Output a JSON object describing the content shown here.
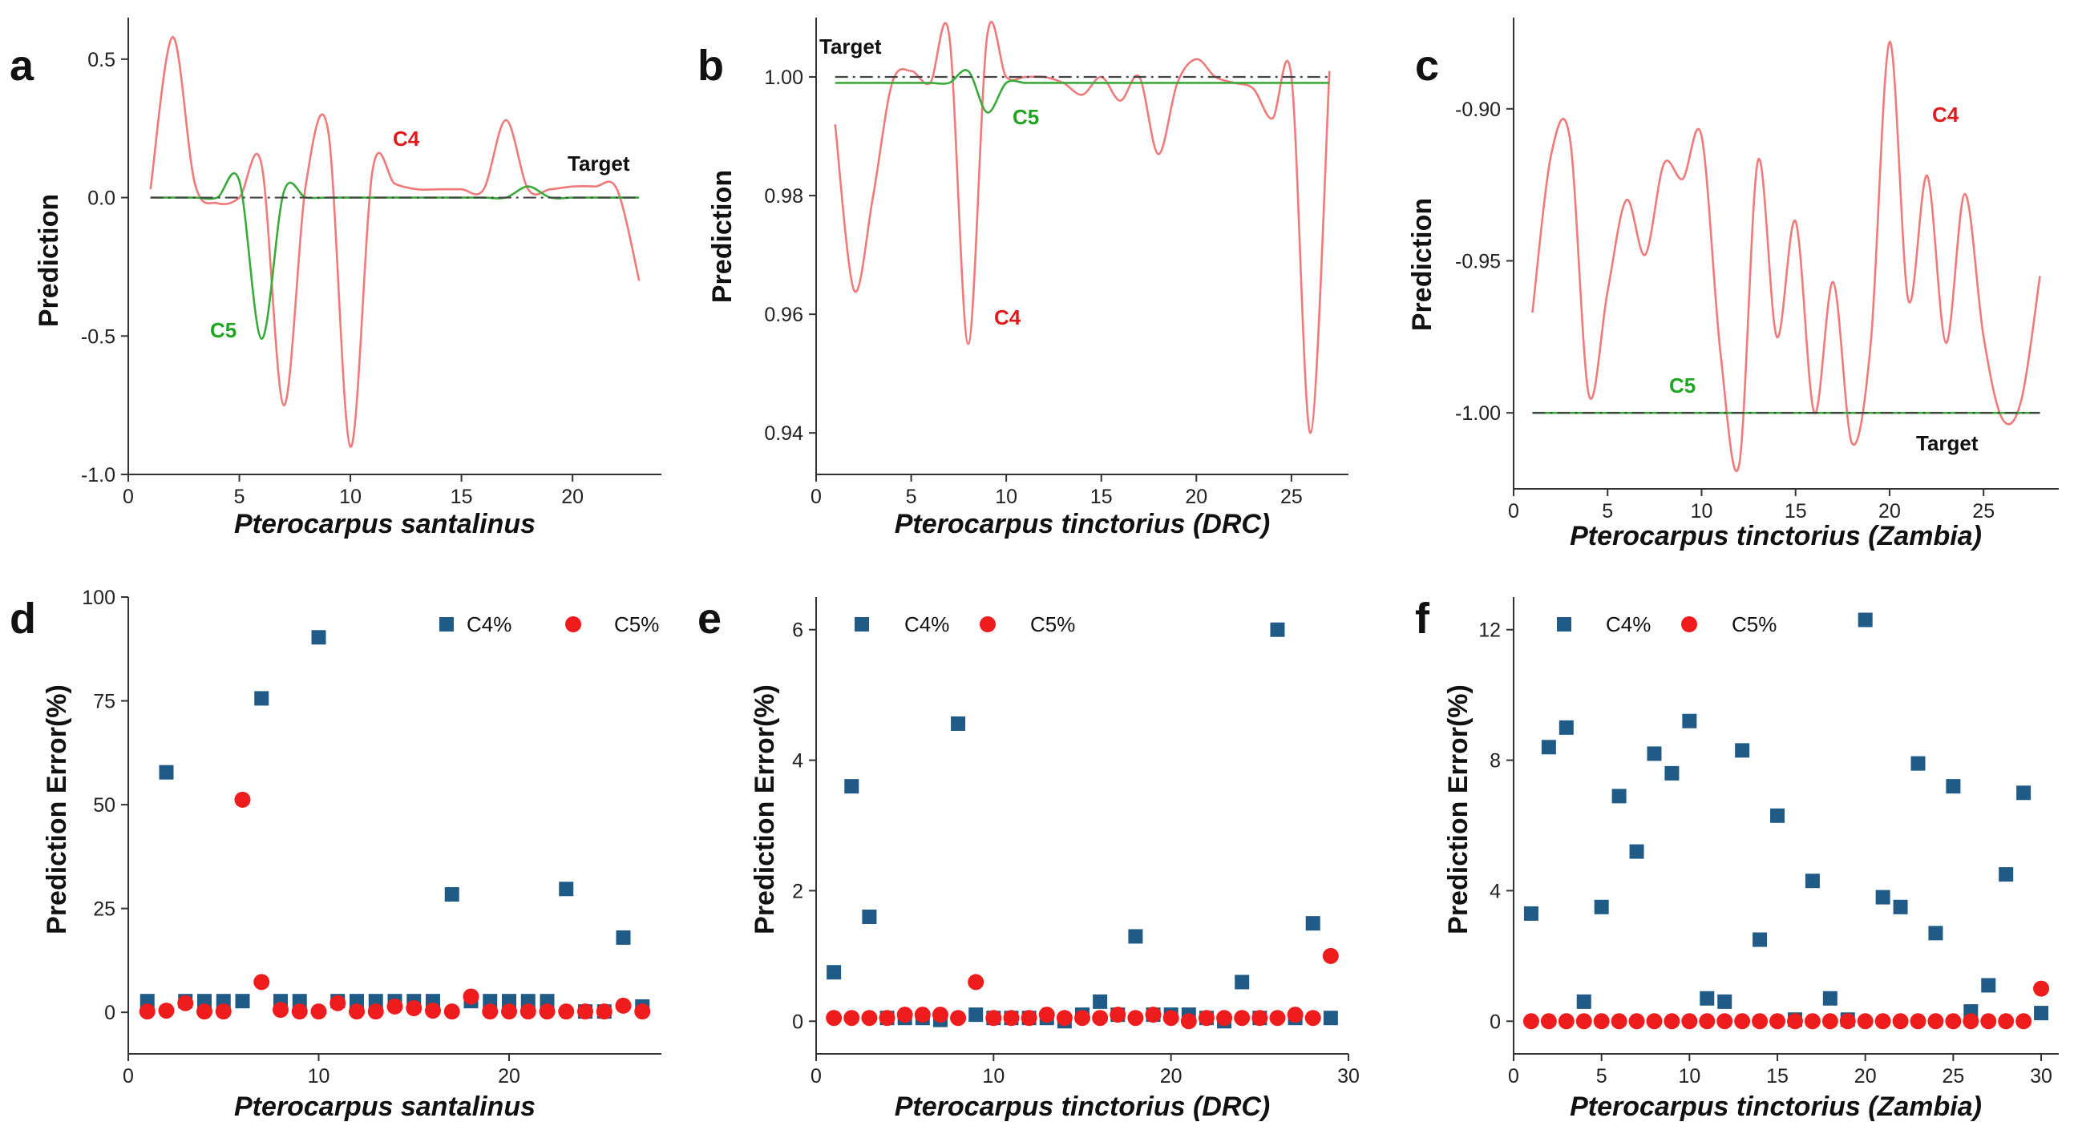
{
  "colors": {
    "c4": "#f07a7a",
    "c5": "#3aaa3a",
    "target": "#444444",
    "c4_marker": "#1f5b86",
    "c5_marker": "#ee1c1c",
    "c4_label": "#e01b1b",
    "c5_label": "#1fa51f"
  },
  "chart_data": [
    {
      "panel": "a",
      "type": "line",
      "xlabel": "Pterocarpus santalinus",
      "ylabel": "Prediction",
      "xlim": [
        0,
        24
      ],
      "ylim": [
        -1.0,
        0.65
      ],
      "xticks": [
        0,
        5,
        10,
        15,
        20
      ],
      "yticks": [
        -1.0,
        -0.5,
        0.0,
        0.5
      ],
      "ytick_labels": [
        "-1.0",
        "-0.5",
        "0.0",
        "0.5"
      ],
      "series": [
        {
          "name": "C4",
          "x": [
            1,
            2,
            3,
            4,
            5,
            6,
            7,
            8,
            9,
            10,
            11,
            12,
            13,
            14,
            15,
            16,
            17,
            18,
            19,
            20,
            21,
            22,
            23
          ],
          "y": [
            0.03,
            0.58,
            0.05,
            -0.02,
            0.0,
            0.12,
            -0.75,
            0.05,
            0.24,
            -0.9,
            0.1,
            0.05,
            0.03,
            0.03,
            0.03,
            0.03,
            0.28,
            0.03,
            0.03,
            0.04,
            0.04,
            0.03,
            -0.3
          ]
        },
        {
          "name": "C5",
          "x": [
            1,
            2,
            3,
            4,
            5,
            6,
            7,
            8,
            9,
            10,
            11,
            12,
            13,
            14,
            15,
            16,
            17,
            18,
            19,
            20,
            21,
            22,
            23
          ],
          "y": [
            0,
            0,
            0,
            0,
            0.06,
            -0.51,
            0.02,
            0,
            0,
            0,
            0,
            0,
            0,
            0,
            0,
            0,
            0,
            0.04,
            0,
            0,
            0,
            0,
            0
          ]
        },
        {
          "name": "Target",
          "x": [
            1,
            23
          ],
          "y": [
            0,
            0
          ]
        }
      ],
      "annotations": [
        {
          "text": "C4",
          "series": "C4"
        },
        {
          "text": "C5",
          "series": "C5"
        },
        {
          "text": "Target",
          "series": "Target"
        }
      ]
    },
    {
      "panel": "b",
      "type": "line",
      "xlabel": "Pterocarpus tinctorius (DRC)",
      "ylabel": "Prediction",
      "xlim": [
        0,
        28
      ],
      "ylim": [
        0.933,
        1.01
      ],
      "xticks": [
        0,
        5,
        10,
        15,
        20,
        25
      ],
      "yticks": [
        0.94,
        0.96,
        0.98,
        1.0
      ],
      "ytick_labels": [
        "0.94",
        "0.96",
        "0.98",
        "1.00"
      ],
      "series": [
        {
          "name": "C4",
          "x": [
            1,
            2,
            3,
            4,
            5,
            6,
            7,
            8,
            9,
            10,
            11,
            12,
            13,
            14,
            15,
            16,
            17,
            18,
            19,
            20,
            21,
            22,
            23,
            24,
            25,
            26,
            27
          ],
          "y": [
            0.992,
            0.964,
            0.98,
            0.999,
            1.001,
            0.999,
            1.007,
            0.955,
            1.007,
            1.0,
            1.0,
            1.0,
            0.999,
            0.997,
            1.0,
            0.996,
            1.0,
            0.987,
            0.999,
            1.003,
            1.0,
            0.999,
            0.998,
            0.993,
            1.0,
            0.94,
            1.001
          ]
        },
        {
          "name": "C5",
          "x": [
            1,
            2,
            3,
            4,
            5,
            6,
            7,
            8,
            9,
            10,
            11,
            12,
            13,
            14,
            15,
            16,
            17,
            18,
            19,
            20,
            21,
            22,
            23,
            24,
            25,
            26,
            27
          ],
          "y": [
            0.999,
            0.999,
            0.999,
            0.999,
            0.999,
            0.999,
            0.999,
            1.001,
            0.994,
            0.999,
            0.999,
            0.999,
            0.999,
            0.999,
            0.999,
            0.999,
            0.999,
            0.999,
            0.999,
            0.999,
            0.999,
            0.999,
            0.999,
            0.999,
            0.999,
            0.999,
            0.999
          ]
        },
        {
          "name": "Target",
          "x": [
            1,
            27
          ],
          "y": [
            1.0,
            1.0
          ]
        }
      ],
      "annotations": [
        {
          "text": "Target",
          "series": "Target"
        },
        {
          "text": "C5",
          "series": "C5"
        },
        {
          "text": "C4",
          "series": "C4"
        }
      ]
    },
    {
      "panel": "c",
      "type": "line",
      "xlabel": "Pterocarpus tinctorius (Zambia)",
      "ylabel": "Prediction",
      "xlim": [
        0,
        29
      ],
      "ylim": [
        -1.025,
        -0.87
      ],
      "xticks": [
        0,
        5,
        10,
        15,
        20,
        25
      ],
      "yticks": [
        -1.0,
        -0.95,
        -0.9
      ],
      "ytick_labels": [
        "-1.00",
        "-0.95",
        "-0.90"
      ],
      "series": [
        {
          "name": "C4",
          "x": [
            1,
            2,
            3,
            4,
            5,
            6,
            7,
            8,
            9,
            10,
            11,
            12,
            13,
            14,
            15,
            16,
            17,
            18,
            19,
            20,
            21,
            22,
            23,
            24,
            25,
            26,
            27,
            28
          ],
          "y": [
            -0.967,
            -0.915,
            -0.91,
            -0.994,
            -0.96,
            -0.93,
            -0.948,
            -0.918,
            -0.923,
            -0.909,
            -0.98,
            -1.017,
            -0.917,
            -0.975,
            -0.937,
            -1.0,
            -0.957,
            -1.01,
            -0.977,
            -0.878,
            -0.963,
            -0.922,
            -0.977,
            -0.928,
            -0.975,
            -1.002,
            -0.996,
            -0.955
          ]
        },
        {
          "name": "C5",
          "x": [
            1,
            28
          ],
          "y": [
            -1.0,
            -1.0
          ]
        },
        {
          "name": "Target",
          "x": [
            1,
            28
          ],
          "y": [
            -1.0,
            -1.0
          ]
        }
      ],
      "annotations": [
        {
          "text": "C4",
          "series": "C4"
        },
        {
          "text": "C5",
          "series": "C5"
        },
        {
          "text": "Target",
          "series": "Target"
        }
      ]
    },
    {
      "panel": "d",
      "type": "scatter",
      "xlabel": "Pterocarpus santalinus",
      "ylabel": "Prediction Error(%)",
      "xlim": [
        0,
        28
      ],
      "ylim": [
        -10,
        100
      ],
      "xticks": [
        0,
        10,
        20
      ],
      "yticks": [
        0,
        25,
        50,
        75,
        100
      ],
      "ytick_labels": [
        "0",
        "25",
        "50",
        "75",
        "100"
      ],
      "legend": [
        "C4%",
        "C5%"
      ],
      "legend_position": "top-right",
      "series": [
        {
          "name": "C4%",
          "x": [
            1,
            2,
            3,
            4,
            5,
            6,
            7,
            8,
            9,
            10,
            11,
            12,
            13,
            14,
            15,
            16,
            17,
            18,
            19,
            20,
            21,
            22,
            23,
            24,
            25,
            26,
            27
          ],
          "y": [
            2.7,
            57.8,
            2.7,
            2.7,
            2.7,
            2.7,
            75.6,
            2.7,
            2.7,
            90.3,
            2.7,
            2.7,
            2.7,
            2.7,
            2.7,
            2.7,
            28.4,
            2.7,
            2.7,
            2.7,
            2.7,
            2.7,
            29.7,
            0.2,
            0.2,
            18.0,
            1.4
          ]
        },
        {
          "name": "C5%",
          "x": [
            1,
            2,
            3,
            4,
            5,
            6,
            7,
            8,
            9,
            10,
            11,
            12,
            13,
            14,
            15,
            16,
            17,
            18,
            19,
            20,
            21,
            22,
            23,
            24,
            25,
            26,
            27
          ],
          "y": [
            0.2,
            0.4,
            2.2,
            0.2,
            0.2,
            51.2,
            7.3,
            0.6,
            0.2,
            0.2,
            2.2,
            0.2,
            0.2,
            1.4,
            1.0,
            0.4,
            0.2,
            3.8,
            0.2,
            0.2,
            0.2,
            0.2,
            0.2,
            0.2,
            0.2,
            1.6,
            0.2
          ]
        }
      ]
    },
    {
      "panel": "e",
      "type": "scatter",
      "xlabel": "Pterocarpus tinctorius (DRC)",
      "ylabel": "Prediction Error(%)",
      "xlim": [
        0,
        30
      ],
      "ylim": [
        -0.5,
        6.5
      ],
      "xticks": [
        0,
        10,
        20,
        30
      ],
      "yticks": [
        0,
        2,
        4,
        6
      ],
      "ytick_labels": [
        "0",
        "2",
        "4",
        "6"
      ],
      "legend": [
        "C4%",
        "C5%"
      ],
      "legend_position": "top-left",
      "series": [
        {
          "name": "C4%",
          "x": [
            1,
            2,
            3,
            4,
            5,
            6,
            7,
            8,
            9,
            10,
            11,
            12,
            13,
            14,
            15,
            16,
            17,
            18,
            19,
            20,
            21,
            22,
            23,
            24,
            25,
            26,
            27,
            28,
            29
          ],
          "y": [
            0.75,
            3.6,
            1.6,
            0.05,
            0.05,
            0.05,
            0.02,
            4.56,
            0.1,
            0.05,
            0.05,
            0.05,
            0.05,
            0.0,
            0.1,
            0.3,
            0.1,
            1.3,
            0.1,
            0.1,
            0.1,
            0.05,
            0.0,
            0.6,
            0.05,
            6.0,
            0.05,
            1.5,
            0.05
          ]
        },
        {
          "name": "C5%",
          "x": [
            1,
            2,
            3,
            4,
            5,
            6,
            7,
            8,
            9,
            10,
            11,
            12,
            13,
            14,
            15,
            16,
            17,
            18,
            19,
            20,
            21,
            22,
            23,
            24,
            25,
            26,
            27,
            28,
            29
          ],
          "y": [
            0.05,
            0.05,
            0.05,
            0.05,
            0.1,
            0.1,
            0.1,
            0.05,
            0.6,
            0.05,
            0.05,
            0.05,
            0.1,
            0.05,
            0.05,
            0.05,
            0.1,
            0.05,
            0.1,
            0.05,
            0.0,
            0.05,
            0.05,
            0.05,
            0.05,
            0.05,
            0.1,
            0.05,
            1.0
          ]
        }
      ]
    },
    {
      "panel": "f",
      "type": "scatter",
      "xlabel": "Pterocarpus tinctorius (Zambia)",
      "ylabel": "Prediction Error(%)",
      "xlim": [
        0,
        31
      ],
      "ylim": [
        -1,
        13
      ],
      "xticks": [
        0,
        5,
        10,
        15,
        20,
        25,
        30
      ],
      "yticks": [
        0,
        4,
        8,
        12
      ],
      "ytick_labels": [
        "0",
        "4",
        "8",
        "12"
      ],
      "legend": [
        "C4%",
        "C5%"
      ],
      "legend_position": "top-left",
      "series": [
        {
          "name": "C4%",
          "x": [
            1,
            2,
            3,
            4,
            5,
            6,
            7,
            8,
            9,
            10,
            11,
            12,
            13,
            14,
            15,
            16,
            17,
            18,
            19,
            20,
            21,
            22,
            23,
            24,
            25,
            26,
            27,
            28,
            29,
            30
          ],
          "y": [
            3.3,
            8.4,
            9.0,
            0.6,
            3.5,
            6.9,
            5.2,
            8.2,
            7.6,
            9.2,
            0.7,
            0.6,
            8.3,
            2.5,
            6.3,
            0.05,
            4.3,
            0.7,
            0.05,
            12.3,
            3.8,
            3.5,
            7.9,
            2.7,
            7.2,
            0.3,
            1.1,
            4.5,
            7.0,
            0.25
          ]
        },
        {
          "name": "C5%",
          "x": [
            1,
            2,
            3,
            4,
            5,
            6,
            7,
            8,
            9,
            10,
            11,
            12,
            13,
            14,
            15,
            16,
            17,
            18,
            19,
            20,
            21,
            22,
            23,
            24,
            25,
            26,
            27,
            28,
            29,
            30
          ],
          "y": [
            0,
            0,
            0,
            0,
            0,
            0,
            0,
            0,
            0,
            0,
            0,
            0,
            0,
            0,
            0,
            0,
            0,
            0,
            0,
            0,
            0,
            0,
            0,
            0,
            0,
            0,
            0,
            0,
            0,
            1.0
          ]
        }
      ]
    }
  ]
}
